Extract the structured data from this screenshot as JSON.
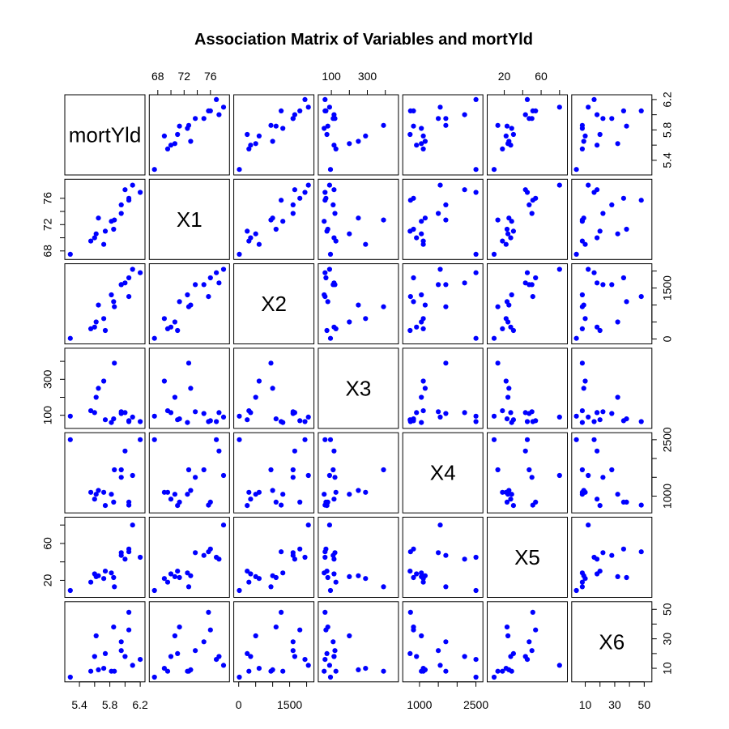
{
  "chart_data": {
    "type": "scatter",
    "title": "Association Matrix of Variables and mortYld",
    "point_color": "#0000ff",
    "variables": [
      {
        "name": "mortYld",
        "range": [
          5.25,
          6.22
        ],
        "ticks": [
          5.4,
          5.6,
          5.8,
          6.0,
          6.2
        ],
        "labels": [
          "5.4",
          "5.8",
          "6.2"
        ],
        "labeled_ticks": [
          5.4,
          5.8,
          6.2
        ]
      },
      {
        "name": "X1",
        "range": [
          67.2,
          78.4
        ],
        "ticks": [
          68,
          70,
          72,
          74,
          76
        ],
        "labels": [
          "68",
          "72",
          "76"
        ],
        "labeled_ticks": [
          68,
          72,
          76
        ]
      },
      {
        "name": "X2",
        "range": [
          -50,
          2120
        ],
        "ticks": [
          0,
          500,
          1000,
          1500,
          2000
        ],
        "labels": [
          "0",
          "1500"
        ],
        "labeled_ticks": [
          0,
          1500
        ]
      },
      {
        "name": "X3",
        "range": [
          45,
          455
        ],
        "ticks": [
          100,
          200,
          300,
          400
        ],
        "labels": [
          "100",
          "300"
        ],
        "labeled_ticks": [
          100,
          300
        ]
      },
      {
        "name": "X4",
        "range": [
          640,
          2600
        ],
        "ticks": [
          1000,
          1500,
          2000,
          2500
        ],
        "labels": [
          "1000",
          "2500"
        ],
        "labeled_ticks": [
          1000,
          2500
        ]
      },
      {
        "name": "X5",
        "range": [
          5,
          85
        ],
        "ticks": [
          20,
          40,
          60,
          80
        ],
        "labels": [
          "20",
          "60"
        ],
        "labeled_ticks": [
          20,
          60
        ]
      },
      {
        "name": "X6",
        "range": [
          3,
          53
        ],
        "ticks": [
          10,
          20,
          30,
          40,
          50
        ],
        "labels": [
          "10",
          "30",
          "50"
        ],
        "labeled_ticks": [
          10,
          30,
          50
        ]
      }
    ],
    "observations": [
      {
        "mortYld": 5.28,
        "X1": 67.5,
        "X2": 20,
        "X3": 95,
        "X4": 2500,
        "X5": 9,
        "X6": 4
      },
      {
        "mortYld": 5.55,
        "X1": 69.5,
        "X2": 300,
        "X3": 125,
        "X4": 1100,
        "X5": 18,
        "X6": 8
      },
      {
        "mortYld": 5.6,
        "X1": 70.0,
        "X2": 350,
        "X3": 115,
        "X4": 920,
        "X5": 27,
        "X6": 18
      },
      {
        "mortYld": 5.62,
        "X1": 70.6,
        "X2": 500,
        "X3": 200,
        "X4": 1050,
        "X5": 24,
        "X6": 32
      },
      {
        "mortYld": 5.65,
        "X1": 73.0,
        "X2": 1000,
        "X3": 250,
        "X4": 1150,
        "X5": 25,
        "X6": 9
      },
      {
        "mortYld": 5.72,
        "X1": 69.0,
        "X2": 600,
        "X3": 290,
        "X4": 1100,
        "X5": 22,
        "X6": 10
      },
      {
        "mortYld": 5.74,
        "X1": 71.0,
        "X2": 250,
        "X3": 75,
        "X4": 750,
        "X5": 30,
        "X6": 20
      },
      {
        "mortYld": 5.82,
        "X1": 72.5,
        "X2": 1300,
        "X3": 60,
        "X4": 1050,
        "X5": 28,
        "X6": 8
      },
      {
        "mortYld": 5.85,
        "X1": 71.3,
        "X2": 1100,
        "X3": 80,
        "X4": 840,
        "X5": 23,
        "X6": 38
      },
      {
        "mortYld": 5.86,
        "X1": 72.7,
        "X2": 950,
        "X3": 390,
        "X4": 1700,
        "X5": 13,
        "X6": 8
      },
      {
        "mortYld": 5.95,
        "X1": 73.7,
        "X2": 1600,
        "X3": 120,
        "X4": 1500,
        "X5": 50,
        "X6": 22
      },
      {
        "mortYld": 5.95,
        "X1": 75.0,
        "X2": 1600,
        "X3": 110,
        "X4": 1700,
        "X5": 47,
        "X6": 28
      },
      {
        "mortYld": 6.0,
        "X1": 77.3,
        "X2": 1650,
        "X3": 115,
        "X4": 2200,
        "X5": 43,
        "X6": 18
      },
      {
        "mortYld": 6.05,
        "X1": 76.0,
        "X2": 1800,
        "X3": 70,
        "X4": 840,
        "X5": 54,
        "X6": 36
      },
      {
        "mortYld": 6.05,
        "X1": 75.7,
        "X2": 1250,
        "X3": 65,
        "X4": 760,
        "X5": 51,
        "X6": 48
      },
      {
        "mortYld": 6.1,
        "X1": 78.0,
        "X2": 2050,
        "X3": 90,
        "X4": 1550,
        "X5": 80,
        "X6": 12
      },
      {
        "mortYld": 6.2,
        "X1": 76.9,
        "X2": 1950,
        "X3": 65,
        "X4": 2500,
        "X5": 45,
        "X6": 16
      }
    ]
  }
}
